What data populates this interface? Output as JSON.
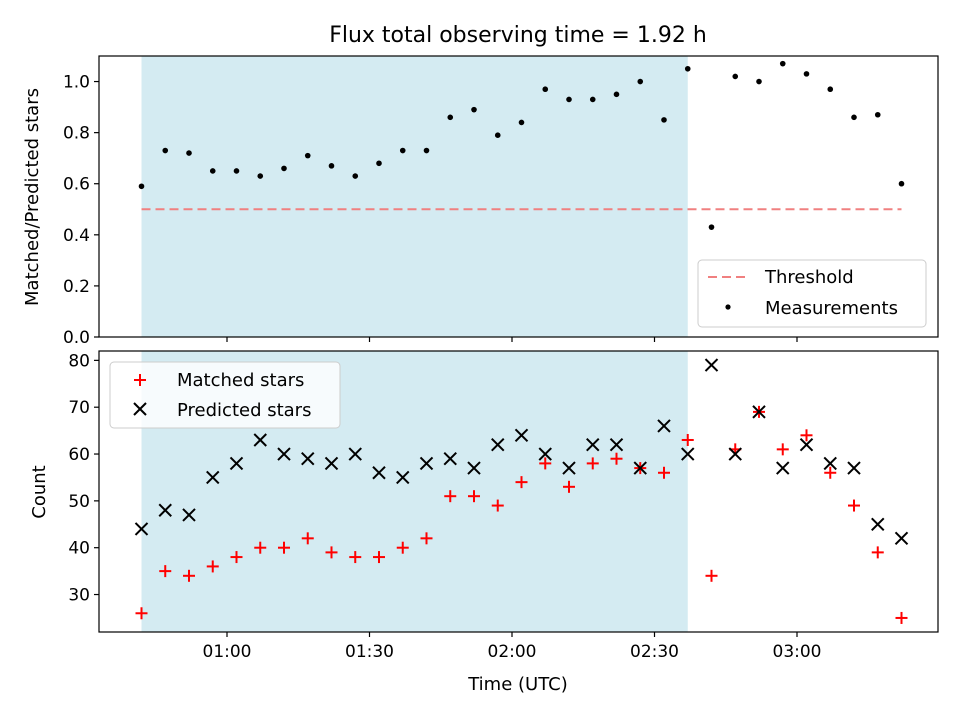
{
  "chart_data": [
    {
      "type": "scatter",
      "title": "Flux total observing time = 1.92 h",
      "xlabel": "",
      "ylabel": "Matched/Predicted stars",
      "ylim": [
        0.0,
        1.1
      ],
      "yticks": [
        "0.0",
        "0.2",
        "0.4",
        "0.6",
        "0.8",
        "1.0"
      ],
      "shaded_region": {
        "x_start": "00:42",
        "x_end": "02:37",
        "color": "#d4ebf2"
      },
      "threshold": {
        "name": "Threshold",
        "y": 0.5,
        "x_start": "00:42",
        "x_end": "03:22",
        "color": "#f08080",
        "style": "dashed"
      },
      "series": [
        {
          "name": "Measurements",
          "marker": "dot",
          "color": "#000000",
          "points": [
            [
              "00:42",
              0.59
            ],
            [
              "00:47",
              0.73
            ],
            [
              "00:52",
              0.72
            ],
            [
              "00:57",
              0.65
            ],
            [
              "01:02",
              0.65
            ],
            [
              "01:07",
              0.63
            ],
            [
              "01:12",
              0.66
            ],
            [
              "01:17",
              0.71
            ],
            [
              "01:22",
              0.67
            ],
            [
              "01:27",
              0.63
            ],
            [
              "01:32",
              0.68
            ],
            [
              "01:37",
              0.73
            ],
            [
              "01:42",
              0.73
            ],
            [
              "01:47",
              0.86
            ],
            [
              "01:52",
              0.89
            ],
            [
              "01:57",
              0.79
            ],
            [
              "02:02",
              0.84
            ],
            [
              "02:07",
              0.97
            ],
            [
              "02:12",
              0.93
            ],
            [
              "02:17",
              0.93
            ],
            [
              "02:22",
              0.95
            ],
            [
              "02:27",
              1.0
            ],
            [
              "02:32",
              0.85
            ],
            [
              "02:37",
              1.05
            ],
            [
              "02:42",
              0.43
            ],
            [
              "02:47",
              1.02
            ],
            [
              "02:52",
              1.0
            ],
            [
              "02:57",
              1.07
            ],
            [
              "03:02",
              1.03
            ],
            [
              "03:07",
              0.97
            ],
            [
              "03:12",
              0.86
            ],
            [
              "03:17",
              0.87
            ],
            [
              "03:22",
              0.6
            ]
          ]
        }
      ],
      "legend": {
        "placement": "lower-right",
        "entries": [
          "Threshold",
          "Measurements"
        ]
      }
    },
    {
      "type": "scatter",
      "title": "",
      "xlabel": "Time (UTC)",
      "ylabel": "Count",
      "ylim": [
        22,
        82
      ],
      "yticks": [
        "30",
        "40",
        "50",
        "60",
        "70",
        "80"
      ],
      "xticks": [
        "01:00",
        "01:30",
        "02:00",
        "02:30",
        "03:00"
      ],
      "shaded_region": {
        "x_start": "00:42",
        "x_end": "02:37",
        "color": "#d4ebf2"
      },
      "series": [
        {
          "name": "Matched stars",
          "marker": "plus",
          "color": "#ff0000",
          "points": [
            [
              "00:42",
              26
            ],
            [
              "00:47",
              35
            ],
            [
              "00:52",
              34
            ],
            [
              "00:57",
              36
            ],
            [
              "01:02",
              38
            ],
            [
              "01:07",
              40
            ],
            [
              "01:12",
              40
            ],
            [
              "01:17",
              42
            ],
            [
              "01:22",
              39
            ],
            [
              "01:27",
              38
            ],
            [
              "01:32",
              38
            ],
            [
              "01:37",
              40
            ],
            [
              "01:42",
              42
            ],
            [
              "01:47",
              51
            ],
            [
              "01:52",
              51
            ],
            [
              "01:57",
              49
            ],
            [
              "02:02",
              54
            ],
            [
              "02:07",
              58
            ],
            [
              "02:12",
              53
            ],
            [
              "02:17",
              58
            ],
            [
              "02:22",
              59
            ],
            [
              "02:27",
              57
            ],
            [
              "02:32",
              56
            ],
            [
              "02:37",
              63
            ],
            [
              "02:42",
              34
            ],
            [
              "02:47",
              61
            ],
            [
              "02:52",
              69
            ],
            [
              "02:57",
              61
            ],
            [
              "03:02",
              64
            ],
            [
              "03:07",
              56
            ],
            [
              "03:12",
              49
            ],
            [
              "03:17",
              39
            ],
            [
              "03:22",
              25
            ]
          ]
        },
        {
          "name": "Predicted stars",
          "marker": "x",
          "color": "#000000",
          "points": [
            [
              "00:42",
              44
            ],
            [
              "00:47",
              48
            ],
            [
              "00:52",
              47
            ],
            [
              "00:57",
              55
            ],
            [
              "01:02",
              58
            ],
            [
              "01:07",
              63
            ],
            [
              "01:12",
              60
            ],
            [
              "01:17",
              59
            ],
            [
              "01:22",
              58
            ],
            [
              "01:27",
              60
            ],
            [
              "01:32",
              56
            ],
            [
              "01:37",
              55
            ],
            [
              "01:42",
              58
            ],
            [
              "01:47",
              59
            ],
            [
              "01:52",
              57
            ],
            [
              "01:57",
              62
            ],
            [
              "02:02",
              64
            ],
            [
              "02:07",
              60
            ],
            [
              "02:12",
              57
            ],
            [
              "02:17",
              62
            ],
            [
              "02:22",
              62
            ],
            [
              "02:27",
              57
            ],
            [
              "02:32",
              66
            ],
            [
              "02:37",
              60
            ],
            [
              "02:42",
              79
            ],
            [
              "02:47",
              60
            ],
            [
              "02:52",
              69
            ],
            [
              "02:57",
              57
            ],
            [
              "03:02",
              62
            ],
            [
              "03:07",
              58
            ],
            [
              "03:12",
              57
            ],
            [
              "03:17",
              45
            ],
            [
              "03:22",
              42
            ]
          ]
        }
      ],
      "legend": {
        "placement": "upper-left",
        "entries": [
          "Matched stars",
          "Predicted stars"
        ]
      }
    }
  ]
}
